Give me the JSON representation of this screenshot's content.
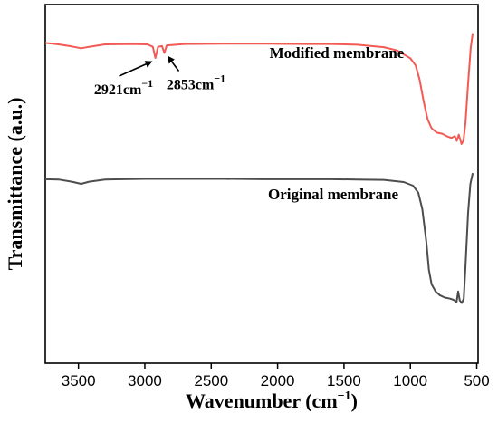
{
  "chart_data": {
    "type": "line",
    "xlabel": "Wavenumber (cm",
    "xlabel_sup": "−1",
    "xlabel_close": ")",
    "ylabel": "Transmittance (a.u.)",
    "xlim": [
      3750,
      490
    ],
    "x_reversed": true,
    "x_ticks": [
      3500,
      3000,
      2500,
      2000,
      1500,
      1000,
      500
    ],
    "y_ticks_labeled": false,
    "ylim": [
      0,
      1
    ],
    "grid": false,
    "series": [
      {
        "name": "Modified membrane",
        "color": "#f25a55",
        "points": [
          [
            3750,
            0.893
          ],
          [
            3650,
            0.889
          ],
          [
            3550,
            0.883
          ],
          [
            3480,
            0.878
          ],
          [
            3420,
            0.882
          ],
          [
            3300,
            0.889
          ],
          [
            3100,
            0.89
          ],
          [
            2980,
            0.889
          ],
          [
            2940,
            0.882
          ],
          [
            2921,
            0.851
          ],
          [
            2900,
            0.882
          ],
          [
            2870,
            0.884
          ],
          [
            2853,
            0.865
          ],
          [
            2835,
            0.886
          ],
          [
            2700,
            0.89
          ],
          [
            2400,
            0.891
          ],
          [
            2100,
            0.891
          ],
          [
            1800,
            0.89
          ],
          [
            1600,
            0.89
          ],
          [
            1400,
            0.888
          ],
          [
            1200,
            0.881
          ],
          [
            1100,
            0.872
          ],
          [
            1000,
            0.85
          ],
          [
            960,
            0.83
          ],
          [
            930,
            0.79
          ],
          [
            900,
            0.73
          ],
          [
            870,
            0.68
          ],
          [
            840,
            0.655
          ],
          [
            800,
            0.643
          ],
          [
            760,
            0.64
          ],
          [
            720,
            0.632
          ],
          [
            690,
            0.628
          ],
          [
            665,
            0.633
          ],
          [
            650,
            0.62
          ],
          [
            635,
            0.637
          ],
          [
            615,
            0.611
          ],
          [
            600,
            0.621
          ],
          [
            585,
            0.67
          ],
          [
            565,
            0.78
          ],
          [
            545,
            0.88
          ],
          [
            530,
            0.92
          ]
        ]
      },
      {
        "name": "Original membrane",
        "color": "#4d4d4d",
        "points": [
          [
            3750,
            0.513
          ],
          [
            3650,
            0.512
          ],
          [
            3550,
            0.506
          ],
          [
            3480,
            0.5
          ],
          [
            3420,
            0.506
          ],
          [
            3300,
            0.512
          ],
          [
            3000,
            0.514
          ],
          [
            2700,
            0.514
          ],
          [
            2400,
            0.514
          ],
          [
            2100,
            0.513
          ],
          [
            1800,
            0.513
          ],
          [
            1600,
            0.513
          ],
          [
            1400,
            0.512
          ],
          [
            1200,
            0.511
          ],
          [
            1050,
            0.505
          ],
          [
            980,
            0.495
          ],
          [
            940,
            0.475
          ],
          [
            910,
            0.43
          ],
          [
            880,
            0.34
          ],
          [
            860,
            0.26
          ],
          [
            840,
            0.22
          ],
          [
            810,
            0.2
          ],
          [
            780,
            0.19
          ],
          [
            740,
            0.183
          ],
          [
            700,
            0.18
          ],
          [
            670,
            0.176
          ],
          [
            652,
            0.17
          ],
          [
            640,
            0.2
          ],
          [
            628,
            0.175
          ],
          [
            612,
            0.168
          ],
          [
            598,
            0.18
          ],
          [
            585,
            0.27
          ],
          [
            565,
            0.42
          ],
          [
            548,
            0.5
          ],
          [
            530,
            0.53
          ]
        ]
      }
    ],
    "annotations": [
      {
        "text": "2921cm",
        "sup": "−1",
        "arrow_to_x": 2921,
        "arrow_to_y": 0.851
      },
      {
        "text": "2853cm",
        "sup": "−1",
        "arrow_to_x": 2853,
        "arrow_to_y": 0.865
      }
    ]
  }
}
